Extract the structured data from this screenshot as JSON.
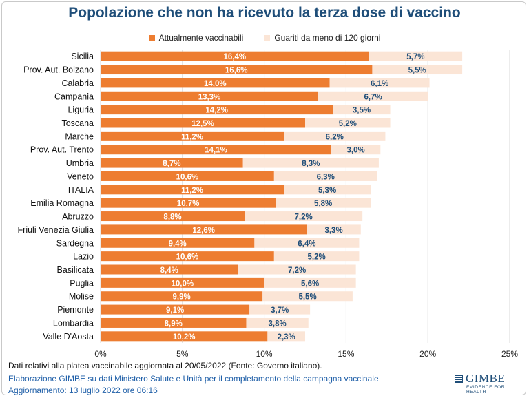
{
  "title": "Popolazione che non ha ricevuto la terza dose di vaccino",
  "colors": {
    "series1": "#ed7d31",
    "series2": "#fbe5d6",
    "label_dark": "#1f4e79",
    "title": "#1f4e79",
    "footer_blue": "#1f5fa8"
  },
  "chart_data": {
    "type": "bar",
    "orientation": "horizontal",
    "stacked": true,
    "title": "Popolazione che non ha ricevuto la terza dose di vaccino",
    "xlabel": "",
    "ylabel": "",
    "xlim": [
      0,
      25
    ],
    "xticks": [
      0,
      5,
      10,
      15,
      20,
      25
    ],
    "xtick_labels": [
      "0%",
      "5%",
      "10%",
      "15%",
      "20%",
      "25%"
    ],
    "grid": "vertical",
    "legend": "top-center",
    "categories": [
      "Sicilia",
      "Prov. Aut. Bolzano",
      "Calabria",
      "Campania",
      "Liguria",
      "Toscana",
      "Marche",
      "Prov. Aut. Trento",
      "Umbria",
      "Veneto",
      "ITALIA",
      "Emilia Romagna",
      "Abruzzo",
      "Friuli Venezia Giulia",
      "Sardegna",
      "Lazio",
      "Basilicata",
      "Puglia",
      "Molise",
      "Piemonte",
      "Lombardia",
      "Valle D'Aosta"
    ],
    "series": [
      {
        "name": "Attualmente vaccinabili",
        "values": [
          16.4,
          16.6,
          14.0,
          13.3,
          14.2,
          12.5,
          11.2,
          14.1,
          8.7,
          10.6,
          11.2,
          10.7,
          8.8,
          12.6,
          9.4,
          10.6,
          8.4,
          10.0,
          9.9,
          9.1,
          8.9,
          10.2
        ],
        "labels": [
          "16,4%",
          "16,6%",
          "14,0%",
          "13,3%",
          "14,2%",
          "12,5%",
          "11,2%",
          "14,1%",
          "8,7%",
          "10,6%",
          "11,2%",
          "10,7%",
          "8,8%",
          "12,6%",
          "9,4%",
          "10,6%",
          "8,4%",
          "10,0%",
          "9,9%",
          "9,1%",
          "8,9%",
          "10,2%"
        ]
      },
      {
        "name": "Guariti da meno di 120 giorni",
        "values": [
          5.7,
          5.5,
          6.1,
          6.7,
          3.5,
          5.2,
          6.2,
          3.0,
          8.3,
          6.3,
          5.3,
          5.8,
          7.2,
          3.3,
          6.4,
          5.2,
          7.2,
          5.6,
          5.5,
          3.7,
          3.8,
          2.3
        ],
        "labels": [
          "5,7%",
          "5,5%",
          "6,1%",
          "6,7%",
          "3,5%",
          "5,2%",
          "6,2%",
          "3,0%",
          "8,3%",
          "6,3%",
          "5,3%",
          "5,8%",
          "7,2%",
          "3,3%",
          "6,4%",
          "5,2%",
          "7,2%",
          "5,6%",
          "5,5%",
          "3,7%",
          "3,8%",
          "2,3%"
        ]
      }
    ]
  },
  "footer": {
    "line1": "Dati relativi alla platea vaccinabile aggiornata al 20/05/2022 (Fonte: Governo italiano).",
    "line2": "Elaborazione GIMBE su dati Ministero Salute e Unità per il completamento della campagna vaccinale",
    "line3": "Aggiornamento: 13 luglio 2022 ore 06:16"
  },
  "logo": {
    "name": "GIMBE",
    "tagline": "EVIDENCE FOR HEALTH"
  }
}
